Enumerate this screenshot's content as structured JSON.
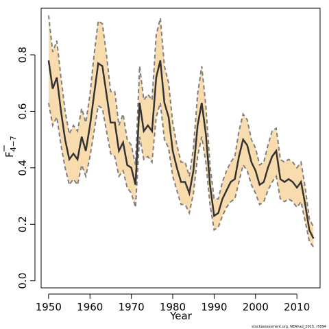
{
  "chart_data": {
    "type": "line",
    "xlabel": "Year",
    "ylabel_main": "F",
    "ylabel_sub": "4−7",
    "xlim": [
      1948.2,
      2015.6
    ],
    "ylim": [
      -0.025,
      0.965
    ],
    "x_ticks": [
      1950,
      1960,
      1970,
      1980,
      1990,
      2000,
      2010
    ],
    "x_tick_labels": [
      "1950",
      "1960",
      "1970",
      "1980",
      "1990",
      "2000",
      "2010"
    ],
    "y_ticks": [
      0.0,
      0.2,
      0.4,
      0.6,
      0.8
    ],
    "y_tick_labels": [
      "0.0",
      "0.2",
      "0.4",
      "0.6",
      "0.8"
    ],
    "grid": false,
    "colors": {
      "band": "#f9dcae",
      "bound_line": "#7f7f7f",
      "mid_line": "#333333",
      "axes": "#000000"
    },
    "series": [
      {
        "years": [
          1950,
          1951,
          1952,
          1953,
          1954,
          1955,
          1956,
          1957,
          1958,
          1959,
          1960,
          1961,
          1962,
          1963,
          1964,
          1965,
          1966,
          1967,
          1968,
          1969,
          1970,
          1971,
          1972,
          1973,
          1974,
          1975,
          1976,
          1977,
          1978,
          1979,
          1980,
          1981,
          1982,
          1983,
          1984,
          1985,
          1986,
          1987,
          1988,
          1989,
          1990,
          1991,
          1992,
          1993,
          1994,
          1995,
          1996,
          1997,
          1998,
          1999,
          2000,
          2001,
          2002,
          2003,
          2004,
          2005,
          2006,
          2007,
          2008,
          2009,
          2010,
          2011,
          2012,
          2013,
          2014
        ],
        "estimate": [
          0.78,
          0.68,
          0.72,
          0.6,
          0.5,
          0.43,
          0.45,
          0.43,
          0.51,
          0.46,
          0.55,
          0.66,
          0.77,
          0.76,
          0.66,
          0.56,
          0.56,
          0.46,
          0.49,
          0.41,
          0.4,
          0.34,
          0.63,
          0.53,
          0.55,
          0.53,
          0.72,
          0.78,
          0.63,
          0.58,
          0.46,
          0.4,
          0.35,
          0.35,
          0.31,
          0.39,
          0.55,
          0.63,
          0.52,
          0.34,
          0.23,
          0.24,
          0.29,
          0.32,
          0.35,
          0.36,
          0.44,
          0.5,
          0.48,
          0.42,
          0.39,
          0.34,
          0.35,
          0.4,
          0.44,
          0.46,
          0.36,
          0.35,
          0.36,
          0.35,
          0.33,
          0.35,
          0.27,
          0.18,
          0.15
        ],
        "upper": [
          0.94,
          0.81,
          0.85,
          0.72,
          0.6,
          0.52,
          0.55,
          0.53,
          0.61,
          0.56,
          0.66,
          0.8,
          0.92,
          0.91,
          0.8,
          0.67,
          0.67,
          0.55,
          0.59,
          0.5,
          0.48,
          0.41,
          0.76,
          0.64,
          0.66,
          0.64,
          0.87,
          0.93,
          0.76,
          0.7,
          0.56,
          0.48,
          0.42,
          0.42,
          0.37,
          0.47,
          0.66,
          0.76,
          0.62,
          0.41,
          0.29,
          0.29,
          0.35,
          0.39,
          0.42,
          0.44,
          0.53,
          0.59,
          0.57,
          0.5,
          0.47,
          0.41,
          0.42,
          0.48,
          0.53,
          0.54,
          0.43,
          0.42,
          0.43,
          0.42,
          0.4,
          0.42,
          0.33,
          0.22,
          0.19
        ],
        "lower": [
          0.63,
          0.55,
          0.58,
          0.48,
          0.4,
          0.34,
          0.36,
          0.34,
          0.41,
          0.37,
          0.44,
          0.53,
          0.62,
          0.61,
          0.53,
          0.45,
          0.44,
          0.37,
          0.39,
          0.33,
          0.31,
          0.26,
          0.51,
          0.43,
          0.44,
          0.42,
          0.58,
          0.63,
          0.5,
          0.47,
          0.37,
          0.32,
          0.27,
          0.27,
          0.24,
          0.31,
          0.44,
          0.51,
          0.42,
          0.27,
          0.18,
          0.19,
          0.23,
          0.26,
          0.28,
          0.29,
          0.35,
          0.41,
          0.39,
          0.34,
          0.31,
          0.27,
          0.28,
          0.32,
          0.35,
          0.37,
          0.29,
          0.28,
          0.29,
          0.28,
          0.26,
          0.28,
          0.21,
          0.14,
          0.12
        ]
      }
    ]
  },
  "footnote": "stockassessment.org, NEAhad_2015, r5094"
}
